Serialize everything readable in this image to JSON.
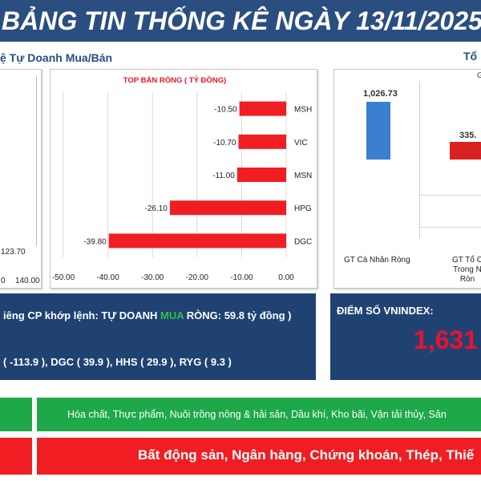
{
  "header": {
    "title": "BẢNG TIN THỐNG KÊ NGÀY 13/11/2025"
  },
  "section_left": {
    "title": "ệ Tự Doanh Mua/Bán"
  },
  "section_right": {
    "title": "Tổ"
  },
  "left_partial": {
    "value_label": "123.70",
    "axis_ticks": [
      "0",
      "140.00"
    ]
  },
  "right_chart": {
    "subtitle": "G",
    "value_labels": [
      "1,026.73",
      "335."
    ],
    "category_labels": [
      "GT Cá Nhân Ròng",
      "GT Tổ C Trong N Ròn"
    ]
  },
  "info": {
    "line1_prefix": "iêng CP khớp lệnh: TỰ DOANH ",
    "line1_highlight": "MUA",
    "line1_suffix": " RÒNG: 59.8 tỷ đồng )",
    "line2": "( -113.9 ), DGC ( 39.9 ), HHS ( 29.9 ), RYG ( 9.3 )"
  },
  "vnindex": {
    "label": "ĐIỂM SỐ VNINDEX:",
    "value": "1,631"
  },
  "sectors": {
    "up_text": "Hóa chất, Thực phẩm, Nuôi trồng nông & hải sản, Dầu khí, Kho bãi, Vận tải thủy, Sản",
    "down_text": "Bất động sản, Ngân hàng, Chứng khoán, Thép, Thiế"
  },
  "colors": {
    "banner": "#2a4e80",
    "bar_red": "#f01e22",
    "bar_blue": "#3a7fd0",
    "up_green": "#1ea84a",
    "down_red": "#f01e22"
  },
  "chart_data": {
    "type": "bar",
    "orientation": "horizontal",
    "title": "TOP BÁN RÒNG ( TỶ ĐỒNG)",
    "categories": [
      "MSH",
      "VIC",
      "MSN",
      "HPG",
      "DGC"
    ],
    "values": [
      -10.5,
      -10.7,
      -11.0,
      -26.1,
      -39.8
    ],
    "labels": [
      "-10.50",
      "-10.70",
      "-11.00",
      "-26.10",
      "-39.80"
    ],
    "xlim": [
      -50,
      0
    ],
    "xticks": [
      "-50.00",
      "-40.00",
      "-30.00",
      "-20.00",
      "-10.00",
      "0.00"
    ],
    "grid": true
  }
}
